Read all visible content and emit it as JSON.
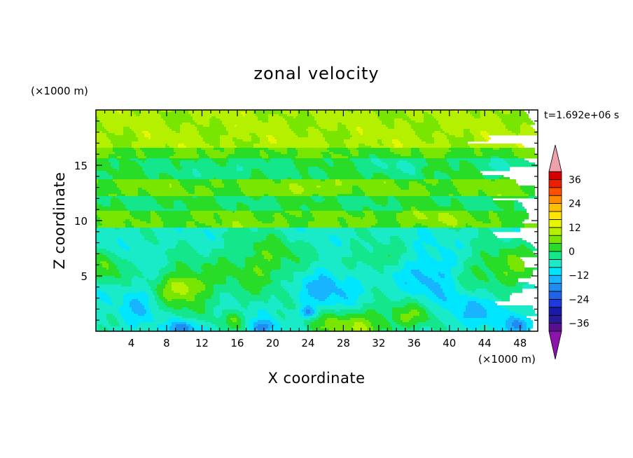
{
  "chart_data": {
    "type": "heatmap",
    "title": "zonal velocity",
    "xlabel": "X coordinate",
    "ylabel": "Z coordinate",
    "x_unit": "(×1000 m)",
    "y_unit": "(×1000 m)",
    "time_label": "t=1.692e+06 s",
    "xlim": [
      0,
      50
    ],
    "ylim": [
      0,
      20
    ],
    "x_ticks": [
      4,
      8,
      12,
      16,
      20,
      24,
      28,
      32,
      36,
      40,
      44,
      48
    ],
    "y_ticks": [
      5,
      10,
      15
    ],
    "colorbar": {
      "levels": [
        -40,
        -36,
        -32,
        -28,
        -24,
        -20,
        -16,
        -12,
        -8,
        -4,
        0,
        4,
        8,
        12,
        16,
        20,
        24,
        28,
        32,
        36,
        40
      ],
      "labeled_ticks": [
        36,
        24,
        12,
        0,
        -12,
        -24,
        -36
      ],
      "colors": [
        "#5a0f8f",
        "#2a1a9a",
        "#1a1aa8",
        "#1e3adc",
        "#1e64e8",
        "#1e8cf0",
        "#19b4ff",
        "#00e6ff",
        "#19ebc8",
        "#14e68c",
        "#28dc28",
        "#78e600",
        "#b4f000",
        "#e6f500",
        "#ffe600",
        "#ffbe00",
        "#ff8c00",
        "#ff5000",
        "#f01e00",
        "#d20000"
      ],
      "over_color": "#f0a0a8",
      "under_color": "#8c14aa"
    },
    "blobs": [
      {
        "x": 10,
        "z": 3.9,
        "rx": 4.2,
        "rz": 2.6,
        "v": 11
      },
      {
        "x": 10,
        "z": 4,
        "rx": 2.2,
        "rz": 1.0,
        "v": 7
      },
      {
        "x": 19,
        "z": 6,
        "rx": 5.5,
        "rz": 3.0,
        "v": 10
      },
      {
        "x": 46.5,
        "z": 5.7,
        "rx": 5.5,
        "rz": 2.3,
        "v": 11
      },
      {
        "x": 29,
        "z": 0.5,
        "rx": 5.5,
        "rz": 1.8,
        "v": 14
      },
      {
        "x": 1.2,
        "z": 5.8,
        "rx": 2.2,
        "rz": 1.8,
        "v": 9
      },
      {
        "x": 15.5,
        "z": 1,
        "rx": 1.5,
        "rz": 1.0,
        "v": 8
      },
      {
        "x": 36,
        "z": 1.5,
        "rx": 3.5,
        "rz": 1.4,
        "v": 8
      },
      {
        "x": 31,
        "z": 6.5,
        "rx": 4.0,
        "rz": 1.5,
        "v": 6
      },
      {
        "x": 26,
        "z": 4,
        "rx": 4.5,
        "rz": 2.5,
        "v": -8
      },
      {
        "x": 38,
        "z": 5.2,
        "rx": 3.5,
        "rz": 2.3,
        "v": -8
      },
      {
        "x": 5,
        "z": 2.5,
        "rx": 2.5,
        "rz": 2.0,
        "v": -6
      },
      {
        "x": 10,
        "z": 0.3,
        "rx": 2.0,
        "rz": 0.8,
        "v": -12
      },
      {
        "x": 19,
        "z": 0.4,
        "rx": 1.5,
        "rz": 0.7,
        "v": -12
      },
      {
        "x": 24,
        "z": 1.7,
        "rx": 1.0,
        "rz": 0.6,
        "v": -12
      },
      {
        "x": 43,
        "z": 2,
        "rx": 5.0,
        "rz": 1.6,
        "v": -6
      },
      {
        "x": 48,
        "z": 0.6,
        "rx": 2.0,
        "rz": 0.8,
        "v": -9
      },
      {
        "x": 15,
        "z": 14.6,
        "rx": 4.0,
        "rz": 1.0,
        "v": -4
      },
      {
        "x": 34,
        "z": 15.0,
        "rx": 3.5,
        "rz": 0.9,
        "v": -4
      },
      {
        "x": 46,
        "z": 15.0,
        "rx": 3.0,
        "rz": 0.8,
        "v": -4
      },
      {
        "x": 25,
        "z": 13.1,
        "rx": 3.0,
        "rz": 0.7,
        "v": 5
      },
      {
        "x": 38,
        "z": 10.2,
        "rx": 4.0,
        "rz": 0.8,
        "v": 4
      }
    ]
  }
}
